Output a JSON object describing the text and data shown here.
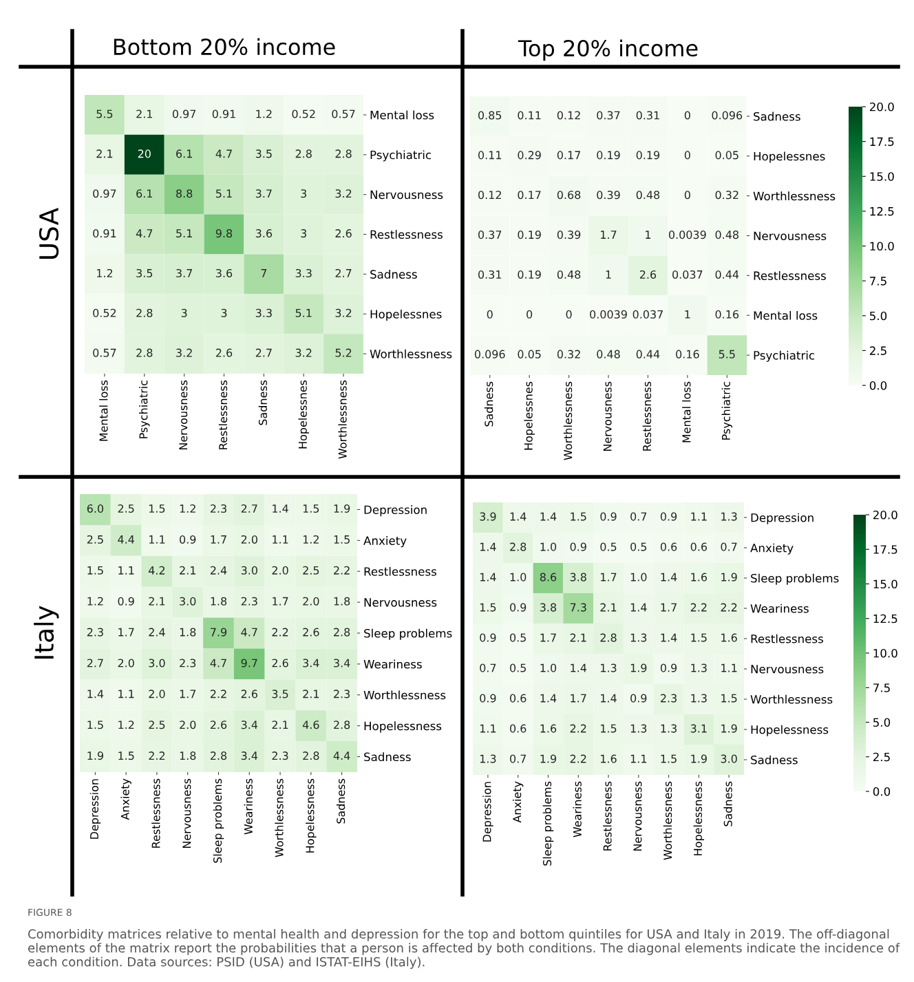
{
  "chart_data": [
    {
      "type": "heatmap",
      "title": "Bottom 20% income",
      "ylabel": "USA",
      "categories": [
        "Mental loss",
        "Psychiatric",
        "Nervousness",
        "Restlessness",
        "Sadness",
        "Hopelessnes",
        "Worthlessness"
      ],
      "y_categories": [
        "Mental loss",
        "Psychiatric",
        "Nervousness",
        "Restlessness",
        "Sadness",
        "Hopelessnes",
        "Worthlessness"
      ],
      "cells": [
        [
          5.5,
          2.1,
          0.97,
          0.91,
          1.2,
          0.52,
          0.57
        ],
        [
          2.1,
          20,
          6.1,
          4.7,
          3.5,
          2.8,
          2.8
        ],
        [
          0.97,
          6.1,
          8.8,
          5.1,
          3.7,
          3,
          3.2
        ],
        [
          0.91,
          4.7,
          5.1,
          9.8,
          3.6,
          3,
          2.6
        ],
        [
          1.2,
          3.5,
          3.7,
          3.6,
          7,
          3.3,
          2.7
        ],
        [
          0.52,
          2.8,
          3,
          3,
          3.3,
          5.1,
          3.2
        ],
        [
          0.57,
          2.8,
          3.2,
          2.6,
          2.7,
          3.2,
          5.2
        ]
      ],
      "data_labels": true
    },
    {
      "type": "heatmap",
      "title": "Top 20% income",
      "categories": [
        "Sadness",
        "Hopelessnes",
        "Worthlessness",
        "Nervousness",
        "Restlessness",
        "Mental loss",
        "Psychiatric"
      ],
      "y_categories": [
        "Sadness",
        "Hopelessnes",
        "Worthlessness",
        "Nervousness",
        "Restlessness",
        "Mental loss",
        "Psychiatric"
      ],
      "cells": [
        [
          0.85,
          0.11,
          0.12,
          0.37,
          0.31,
          0,
          0.096
        ],
        [
          0.11,
          0.29,
          0.17,
          0.19,
          0.19,
          0,
          0.05
        ],
        [
          0.12,
          0.17,
          0.68,
          0.39,
          0.48,
          0,
          0.32
        ],
        [
          0.37,
          0.19,
          0.39,
          1.7,
          1,
          0.0039,
          0.48
        ],
        [
          0.31,
          0.19,
          0.48,
          1,
          2.6,
          0.037,
          0.44
        ],
        [
          0,
          0,
          0,
          0.0039,
          0.037,
          1,
          0.16
        ],
        [
          0.096,
          0.05,
          0.32,
          0.48,
          0.44,
          0.16,
          5.5
        ]
      ],
      "clim": [
        0,
        20
      ],
      "cticks": [
        {
          "value": 0,
          "label": "0.0"
        },
        {
          "value": 2.5,
          "label": "2.5"
        },
        {
          "value": 5,
          "label": "5.0"
        },
        {
          "value": 7.5,
          "label": "7.5"
        },
        {
          "value": 10,
          "label": "10.0"
        },
        {
          "value": 12.5,
          "label": "12.5"
        },
        {
          "value": 15,
          "label": "15.0"
        },
        {
          "value": 17.5,
          "label": "17.5"
        },
        {
          "value": 20,
          "label": "20.0"
        }
      ],
      "data_labels": true
    },
    {
      "type": "heatmap",
      "ylabel": "Italy",
      "categories": [
        "Depression",
        "Anxiety",
        "Restlessness",
        "Nervousness",
        "Sleep problems",
        "Weariness",
        "Worthlessness",
        "Hopelessness",
        "Sadness"
      ],
      "y_categories": [
        "Depression",
        "Anxiety",
        "Restlessness",
        "Nervousness",
        "Sleep problems",
        "Weariness",
        "Worthlessness",
        "Hopelessness",
        "Sadness"
      ],
      "cells": [
        [
          6.0,
          2.5,
          1.5,
          1.2,
          2.3,
          2.7,
          1.4,
          1.5,
          1.9
        ],
        [
          2.5,
          4.4,
          1.1,
          0.9,
          1.7,
          2.0,
          1.1,
          1.2,
          1.5
        ],
        [
          1.5,
          1.1,
          4.2,
          2.1,
          2.4,
          3.0,
          2.0,
          2.5,
          2.2
        ],
        [
          1.2,
          0.9,
          2.1,
          3.0,
          1.8,
          2.3,
          1.7,
          2.0,
          1.8
        ],
        [
          2.3,
          1.7,
          2.4,
          1.8,
          7.9,
          4.7,
          2.2,
          2.6,
          2.8
        ],
        [
          2.7,
          2.0,
          3.0,
          2.3,
          4.7,
          9.7,
          2.6,
          3.4,
          3.4
        ],
        [
          1.4,
          1.1,
          2.0,
          1.7,
          2.2,
          2.6,
          3.5,
          2.1,
          2.3
        ],
        [
          1.5,
          1.2,
          2.5,
          2.0,
          2.6,
          3.4,
          2.1,
          4.6,
          2.8
        ],
        [
          1.9,
          1.5,
          2.2,
          1.8,
          2.8,
          3.4,
          2.3,
          2.8,
          4.4
        ]
      ],
      "cell_labels": [
        [
          "6.0",
          "2.5",
          "1.5",
          "1.2",
          "2.3",
          "2.7",
          "1.4",
          "1.5",
          "1.9"
        ],
        [
          "2.5",
          "4.4",
          "1.1",
          "0.9",
          "1.7",
          "2.0",
          "1.1",
          "1.2",
          "1.5"
        ],
        [
          "1.5",
          "1.1",
          "4.2",
          "2.1",
          "2.4",
          "3.0",
          "2.0",
          "2.5",
          "2.2"
        ],
        [
          "1.2",
          "0.9",
          "2.1",
          "3.0",
          "1.8",
          "2.3",
          "1.7",
          "2.0",
          "1.8"
        ],
        [
          "2.3",
          "1.7",
          "2.4",
          "1.8",
          "7.9",
          "4.7",
          "2.2",
          "2.6",
          "2.8"
        ],
        [
          "2.7",
          "2.0",
          "3.0",
          "2.3",
          "4.7",
          "9.7",
          "2.6",
          "3.4",
          "3.4"
        ],
        [
          "1.4",
          "1.1",
          "2.0",
          "1.7",
          "2.2",
          "2.6",
          "3.5",
          "2.1",
          "2.3"
        ],
        [
          "1.5",
          "1.2",
          "2.5",
          "2.0",
          "2.6",
          "3.4",
          "2.1",
          "4.6",
          "2.8"
        ],
        [
          "1.9",
          "1.5",
          "2.2",
          "1.8",
          "2.8",
          "3.4",
          "2.3",
          "2.8",
          "4.4"
        ]
      ]
    },
    {
      "type": "heatmap",
      "categories": [
        "Depression",
        "Anxiety",
        "Sleep problems",
        "Weariness",
        "Restlessness",
        "Nervousness",
        "Worthlessness",
        "Hopelessness",
        "Sadness"
      ],
      "y_categories": [
        "Depression",
        "Anxiety",
        "Sleep problems",
        "Weariness",
        "Restlessness",
        "Nervousness",
        "Worthlessness",
        "Hopelessness",
        "Sadness"
      ],
      "cells": [
        [
          3.9,
          1.4,
          1.4,
          1.5,
          0.9,
          0.7,
          0.9,
          1.1,
          1.3
        ],
        [
          1.4,
          2.8,
          1.0,
          0.9,
          0.5,
          0.5,
          0.6,
          0.6,
          0.7
        ],
        [
          1.4,
          1.0,
          8.6,
          3.8,
          1.7,
          1.0,
          1.4,
          1.6,
          1.9
        ],
        [
          1.5,
          0.9,
          3.8,
          7.3,
          2.1,
          1.4,
          1.7,
          2.2,
          2.2
        ],
        [
          0.9,
          0.5,
          1.7,
          2.1,
          2.8,
          1.3,
          1.4,
          1.5,
          1.6
        ],
        [
          0.7,
          0.5,
          1.0,
          1.4,
          1.3,
          1.9,
          0.9,
          1.3,
          1.1
        ],
        [
          0.9,
          0.6,
          1.4,
          1.7,
          1.4,
          0.9,
          2.3,
          1.3,
          1.5
        ],
        [
          1.1,
          0.6,
          1.6,
          2.2,
          1.5,
          1.3,
          1.3,
          3.1,
          1.9
        ],
        [
          1.3,
          0.7,
          1.9,
          2.2,
          1.6,
          1.1,
          1.5,
          1.9,
          3.0
        ]
      ],
      "cell_labels": [
        [
          "3.9",
          "1.4",
          "1.4",
          "1.5",
          "0.9",
          "0.7",
          "0.9",
          "1.1",
          "1.3"
        ],
        [
          "1.4",
          "2.8",
          "1.0",
          "0.9",
          "0.5",
          "0.5",
          "0.6",
          "0.6",
          "0.7"
        ],
        [
          "1.4",
          "1.0",
          "8.6",
          "3.8",
          "1.7",
          "1.0",
          "1.4",
          "1.6",
          "1.9"
        ],
        [
          "1.5",
          "0.9",
          "3.8",
          "7.3",
          "2.1",
          "1.4",
          "1.7",
          "2.2",
          "2.2"
        ],
        [
          "0.9",
          "0.5",
          "1.7",
          "2.1",
          "2.8",
          "1.3",
          "1.4",
          "1.5",
          "1.6"
        ],
        [
          "0.7",
          "0.5",
          "1.0",
          "1.4",
          "1.3",
          "1.9",
          "0.9",
          "1.3",
          "1.1"
        ],
        [
          "0.9",
          "0.6",
          "1.4",
          "1.7",
          "1.4",
          "0.9",
          "2.3",
          "1.3",
          "1.5"
        ],
        [
          "1.1",
          "0.6",
          "1.6",
          "2.2",
          "1.5",
          "1.3",
          "1.3",
          "3.1",
          "1.9"
        ],
        [
          "1.3",
          "0.7",
          "1.9",
          "2.2",
          "1.6",
          "1.1",
          "1.5",
          "1.9",
          "3.0"
        ]
      ],
      "clim": [
        0,
        20
      ],
      "cticks": [
        {
          "value": 0,
          "label": "0.0"
        },
        {
          "value": 2.5,
          "label": "2.5"
        },
        {
          "value": 5,
          "label": "5.0"
        },
        {
          "value": 7.5,
          "label": "7.5"
        },
        {
          "value": 10,
          "label": "10.0"
        },
        {
          "value": 12.5,
          "label": "12.5"
        },
        {
          "value": 15,
          "label": "15.0"
        },
        {
          "value": 17.5,
          "label": "17.5"
        },
        {
          "value": 20,
          "label": "20.0"
        }
      ],
      "annotations": [
        "FIGURE 8",
        "Comorbidity matrices relative to mental health and depression for the top and bottom quintiles for USA and Italy in 2019. The off-diagonal elements of the matrix report the probabilities that a person is affected by both conditions. The diagonal elements indicate the incidence of each condition. Data sources: PSID (USA) and ISTAT-EIHS (Italy)."
      ]
    }
  ]
}
